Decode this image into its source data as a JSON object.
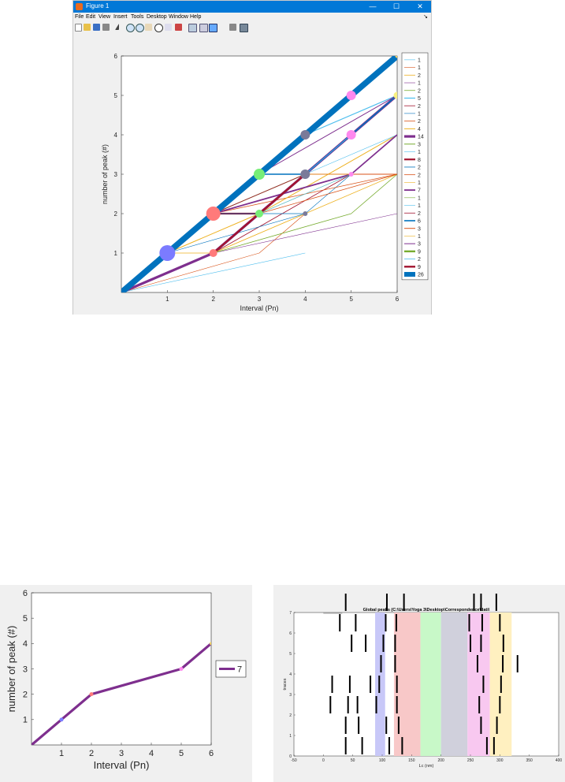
{
  "window": {
    "title": "Figure 1",
    "controls": [
      "—",
      "☐",
      "✕"
    ],
    "menu": [
      "File",
      "Edit",
      "View",
      "Insert",
      "Tools",
      "Desktop",
      "Window",
      "Help"
    ],
    "dock_glyph": "↘",
    "toolbar_icons": [
      "new-figure-icon",
      "open-file-icon",
      "save-icon",
      "print-icon",
      "select-arrow-icon",
      "zoom-in-icon",
      "zoom-out-icon",
      "pan-icon",
      "rotate-icon",
      "data-cursor-icon",
      "brush-icon",
      "link-icon",
      "colorbar-icon",
      "legend-icon",
      "hide-plot-tools-icon",
      "show-plot-tools-icon"
    ]
  },
  "chart_data": [
    {
      "type": "line",
      "xlabel": "Interval (Pn)",
      "ylabel": "number of peak (#)",
      "xticks": [
        1,
        2,
        3,
        4,
        5,
        6
      ],
      "yticks": [
        1,
        2,
        3,
        4,
        5,
        6
      ],
      "xlim": [
        0,
        6
      ],
      "ylim": [
        0,
        6
      ],
      "grid": false,
      "legend_position": "outside-right",
      "series": [
        {
          "name": "1",
          "color": "#4DBEEE",
          "width": 0.6,
          "points": [
            [
              0,
              0
            ],
            [
              4,
              1
            ]
          ]
        },
        {
          "name": "1",
          "color": "#D95319",
          "width": 0.6,
          "points": [
            [
              0,
              0
            ],
            [
              3,
              1
            ],
            [
              4,
              2
            ]
          ]
        },
        {
          "name": "2",
          "color": "#EDB120",
          "width": 0.8,
          "points": [
            [
              0,
              0
            ],
            [
              1,
              1
            ],
            [
              2,
              1
            ],
            [
              4,
              2
            ],
            [
              6,
              3
            ]
          ]
        },
        {
          "name": "1",
          "color": "#7E2F8E",
          "width": 0.6,
          "points": [
            [
              0,
              0
            ],
            [
              2,
              1
            ],
            [
              6,
              2
            ]
          ]
        },
        {
          "name": "2",
          "color": "#77AC30",
          "width": 0.8,
          "points": [
            [
              0,
              0
            ],
            [
              2,
              1
            ],
            [
              5,
              2
            ],
            [
              6,
              3
            ]
          ]
        },
        {
          "name": "5",
          "color": "#4DBEEE",
          "width": 1.2,
          "points": [
            [
              3,
              3
            ],
            [
              4,
              4
            ],
            [
              6,
              5
            ]
          ]
        },
        {
          "name": "2",
          "color": "#A2142F",
          "width": 0.8,
          "points": [
            [
              2,
              1
            ],
            [
              5,
              3
            ],
            [
              6,
              3
            ]
          ]
        },
        {
          "name": "1",
          "color": "#0072BD",
          "width": 0.6,
          "points": [
            [
              1,
              1
            ],
            [
              4,
              2
            ],
            [
              5,
              3
            ],
            [
              6,
              4
            ]
          ]
        },
        {
          "name": "2",
          "color": "#D95319",
          "width": 0.8,
          "points": [
            [
              2,
              2
            ],
            [
              6,
              3
            ]
          ]
        },
        {
          "name": "4",
          "color": "#EDB120",
          "width": 1.0,
          "points": [
            [
              1,
              1
            ],
            [
              3,
              2
            ],
            [
              6,
              4
            ]
          ]
        },
        {
          "name": "14",
          "color": "#7E2F8E",
          "width": 3.2,
          "points": [
            [
              0,
              0
            ],
            [
              2,
              1
            ],
            [
              3,
              2
            ],
            [
              4,
              3
            ],
            [
              5,
              4
            ],
            [
              6,
              5
            ]
          ]
        },
        {
          "name": "3",
          "color": "#77AC30",
          "width": 1.0,
          "points": [
            [
              1,
              1
            ],
            [
              2,
              2
            ],
            [
              4,
              3
            ],
            [
              5,
              4
            ]
          ]
        },
        {
          "name": "1",
          "color": "#4DBEEE",
          "width": 0.6,
          "points": [
            [
              4,
              3
            ],
            [
              6,
              4
            ]
          ]
        },
        {
          "name": "8",
          "color": "#A2142F",
          "width": 2.2,
          "points": [
            [
              1,
              1
            ],
            [
              2,
              2
            ],
            [
              3,
              2
            ],
            [
              4,
              3
            ]
          ]
        },
        {
          "name": "2",
          "color": "#0072BD",
          "width": 0.8,
          "points": [
            [
              2,
              2
            ],
            [
              4,
              2
            ]
          ]
        },
        {
          "name": "2",
          "color": "#D95319",
          "width": 0.8,
          "points": [
            [
              3,
              2
            ],
            [
              6,
              3
            ]
          ]
        },
        {
          "name": "1",
          "color": "#EDB120",
          "width": 0.6,
          "points": [
            [
              2,
              1
            ],
            [
              4,
              2
            ]
          ]
        },
        {
          "name": "7",
          "color": "#7E2F8E",
          "width": 1.8,
          "points": [
            [
              0,
              0
            ],
            [
              1,
              1
            ],
            [
              2,
              2
            ],
            [
              5,
              3
            ],
            [
              6,
              4
            ]
          ]
        },
        {
          "name": "1",
          "color": "#77AC30",
          "width": 0.6,
          "points": [
            [
              3,
              2
            ],
            [
              5,
              3
            ]
          ]
        },
        {
          "name": "1",
          "color": "#4DBEEE",
          "width": 0.6,
          "points": [
            [
              2,
              1
            ],
            [
              3,
              2
            ],
            [
              5,
              3
            ]
          ]
        },
        {
          "name": "2",
          "color": "#A2142F",
          "width": 0.8,
          "points": [
            [
              2,
              2
            ],
            [
              4,
              3
            ]
          ]
        },
        {
          "name": "6",
          "color": "#0072BD",
          "width": 1.6,
          "points": [
            [
              2,
              2
            ],
            [
              3,
              3
            ],
            [
              4,
              3
            ],
            [
              6,
              5
            ]
          ]
        },
        {
          "name": "3",
          "color": "#D95319",
          "width": 1.0,
          "points": [
            [
              3,
              2
            ],
            [
              4,
              3
            ],
            [
              6,
              3
            ]
          ]
        },
        {
          "name": "1",
          "color": "#EDB120",
          "width": 0.6,
          "points": [
            [
              4,
              3
            ],
            [
              5,
              3
            ]
          ]
        },
        {
          "name": "3",
          "color": "#7E2F8E",
          "width": 1.0,
          "points": [
            [
              3,
              3
            ],
            [
              6,
              5
            ]
          ]
        },
        {
          "name": "9",
          "color": "#77AC30",
          "width": 2.4,
          "points": [
            [
              1,
              1
            ],
            [
              2,
              2
            ],
            [
              3,
              3
            ]
          ]
        },
        {
          "name": "2",
          "color": "#4DBEEE",
          "width": 0.8,
          "points": [
            [
              4,
              3
            ],
            [
              5,
              4
            ]
          ]
        },
        {
          "name": "9",
          "color": "#A2142F",
          "width": 2.4,
          "points": [
            [
              2,
              1
            ],
            [
              3,
              2
            ],
            [
              4,
              3
            ]
          ]
        },
        {
          "name": "26",
          "color": "#0072BD",
          "width": 7.5,
          "points": [
            [
              0,
              0
            ],
            [
              1,
              1
            ],
            [
              2,
              2
            ],
            [
              3,
              3
            ],
            [
              4,
              4
            ],
            [
              5,
              5
            ],
            [
              6,
              6
            ]
          ]
        }
      ],
      "markers": [
        {
          "x": 1,
          "y": 1,
          "size": 10,
          "color": "#7b7bff"
        },
        {
          "x": 2,
          "y": 2,
          "size": 9,
          "color": "#ff7a7a"
        },
        {
          "x": 2,
          "y": 1,
          "size": 5,
          "color": "#ff7a7a"
        },
        {
          "x": 3,
          "y": 3,
          "size": 7,
          "color": "#77ee77"
        },
        {
          "x": 3,
          "y": 2,
          "size": 5,
          "color": "#77ee77"
        },
        {
          "x": 4,
          "y": 4,
          "size": 6,
          "color": "#7a7a99"
        },
        {
          "x": 4,
          "y": 3,
          "size": 6,
          "color": "#7a7a99"
        },
        {
          "x": 4,
          "y": 2,
          "size": 3,
          "color": "#7a7a99"
        },
        {
          "x": 5,
          "y": 5,
          "size": 6,
          "color": "#ff88ee"
        },
        {
          "x": 5,
          "y": 4,
          "size": 6,
          "color": "#ff88ee"
        },
        {
          "x": 5,
          "y": 3,
          "size": 3,
          "color": "#ff88ee"
        },
        {
          "x": 6,
          "y": 6,
          "size": 2.5,
          "color": "#f0d060"
        },
        {
          "x": 6,
          "y": 5,
          "size": 4.5,
          "color": "#f8f080"
        }
      ]
    },
    {
      "type": "line",
      "xlabel": "Interval (Pn)",
      "ylabel": "number of peak (#)",
      "xticks": [
        1,
        2,
        3,
        4,
        5,
        6
      ],
      "yticks": [
        1,
        2,
        3,
        4,
        5,
        6
      ],
      "xlim": [
        0,
        6
      ],
      "ylim": [
        0,
        6
      ],
      "grid": false,
      "legend_position": "outside-right",
      "series": [
        {
          "name": "7",
          "color": "#7E2F8E",
          "width": 3.2,
          "points": [
            [
              0,
              0
            ],
            [
              1,
              1
            ],
            [
              2,
              2
            ],
            [
              5,
              3
            ],
            [
              6,
              4
            ]
          ]
        }
      ],
      "markers": [
        {
          "x": 1,
          "y": 1,
          "size": 2.5,
          "color": "#7b7bff"
        },
        {
          "x": 2,
          "y": 2,
          "size": 2.5,
          "color": "#ff7a7a"
        },
        {
          "x": 5,
          "y": 3,
          "size": 2.5,
          "color": "#ff88ee"
        },
        {
          "x": 6,
          "y": 4,
          "size": 2,
          "color": "#f0d060"
        }
      ]
    },
    {
      "type": "scatter",
      "title": "Global peaks (C:\\Users\\Yoga 3\\Desktop\\Correspondence\\dati\\",
      "xlabel": "Lc (nm)",
      "ylabel": "traces",
      "xticks": [
        -50,
        0,
        50,
        100,
        150,
        200,
        250,
        300,
        350,
        400
      ],
      "yticks": [
        0,
        1,
        2,
        3,
        4,
        5,
        6,
        7
      ],
      "xlim": [
        -50,
        400
      ],
      "ylim": [
        0,
        7
      ],
      "bands": [
        {
          "x0": 88,
          "x1": 105,
          "color": "#c8c8f8"
        },
        {
          "x0": 120,
          "x1": 165,
          "color": "#f8c8c8"
        },
        {
          "x0": 165,
          "x1": 200,
          "color": "#c8f8c8"
        },
        {
          "x0": 200,
          "x1": 245,
          "color": "#d0d0dc"
        },
        {
          "x0": 245,
          "x1": 283,
          "color": "#f8c8f0"
        },
        {
          "x0": 283,
          "x1": 320,
          "color": "#fff0c0"
        }
      ],
      "traces": [
        {
          "trace": 0,
          "peaks": [
            38,
            66,
            112,
            134,
            278,
            290
          ]
        },
        {
          "trace": 1,
          "peaks": [
            38,
            60,
            107,
            128,
            268,
            295
          ]
        },
        {
          "trace": 2,
          "peaks": [
            12,
            42,
            58,
            90,
            125,
            265,
            300
          ]
        },
        {
          "trace": 3,
          "peaks": [
            15,
            45,
            80,
            95,
            125,
            272,
            302
          ]
        },
        {
          "trace": 4,
          "peaks": [
            98,
            122,
            262,
            305,
            330
          ]
        },
        {
          "trace": 5,
          "peaks": [
            48,
            72,
            102,
            122,
            250,
            268,
            306
          ]
        },
        {
          "trace": 6,
          "peaks": [
            28,
            55,
            106,
            124,
            248,
            270,
            300
          ]
        },
        {
          "trace": 7,
          "peaks": [
            38,
            108,
            137,
            256,
            268,
            294
          ]
        }
      ]
    }
  ]
}
